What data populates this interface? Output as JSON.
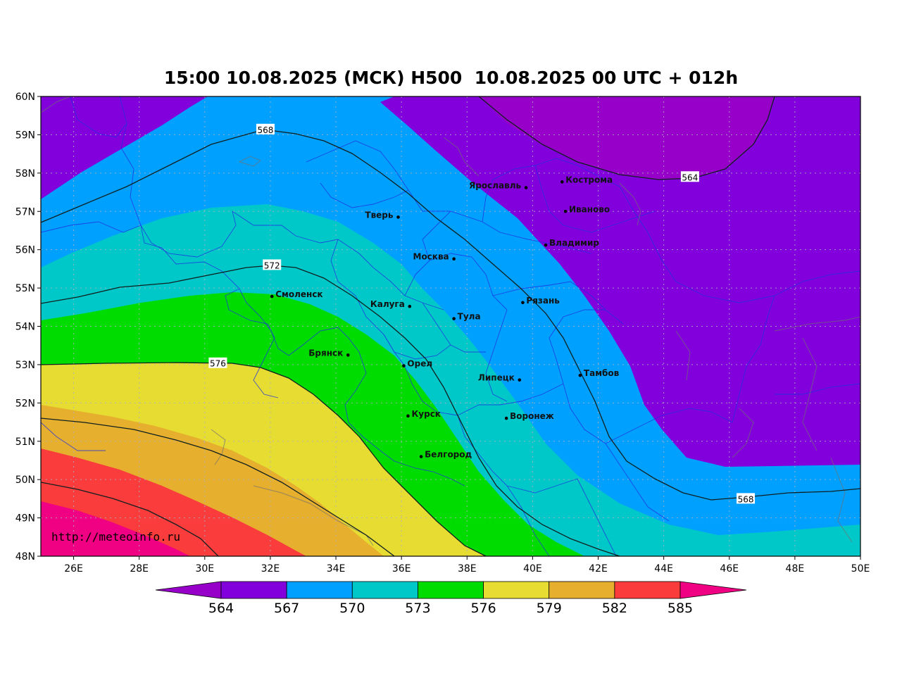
{
  "title": "15:00 10.08.2025 (МСК) H500  10.08.2025 00 UTC + 012h",
  "watermark": "http://meteoinfo.ru",
  "map": {
    "lon_range": [
      25,
      50
    ],
    "lat_range": [
      48,
      60
    ],
    "lat_ticks": [
      {
        "value": 60,
        "label": "60N"
      },
      {
        "value": 59,
        "label": "59N"
      },
      {
        "value": 58,
        "label": "58N"
      },
      {
        "value": 57,
        "label": "57N"
      },
      {
        "value": 56,
        "label": "56N"
      },
      {
        "value": 55,
        "label": "55N"
      },
      {
        "value": 54,
        "label": "54N"
      },
      {
        "value": 53,
        "label": "53N"
      },
      {
        "value": 52,
        "label": "52N"
      },
      {
        "value": 51,
        "label": "51N"
      },
      {
        "value": 50,
        "label": "50N"
      },
      {
        "value": 49,
        "label": "49N"
      },
      {
        "value": 48,
        "label": "48N"
      }
    ],
    "lon_ticks": [
      {
        "value": 26,
        "label": "26E"
      },
      {
        "value": 28,
        "label": "28E"
      },
      {
        "value": 30,
        "label": "30E"
      },
      {
        "value": 32,
        "label": "32E"
      },
      {
        "value": 34,
        "label": "34E"
      },
      {
        "value": 36,
        "label": "36E"
      },
      {
        "value": 38,
        "label": "38E"
      },
      {
        "value": 40,
        "label": "40E"
      },
      {
        "value": 42,
        "label": "42E"
      },
      {
        "value": 44,
        "label": "44E"
      },
      {
        "value": 46,
        "label": "46E"
      },
      {
        "value": 48,
        "label": "48E"
      },
      {
        "value": 50,
        "label": "50E"
      }
    ],
    "cities": [
      {
        "name": "Кострома",
        "lon": 40.9,
        "lat": 57.77,
        "side": "right"
      },
      {
        "name": "Ярославль",
        "lon": 39.8,
        "lat": 57.62,
        "side": "left"
      },
      {
        "name": "Иваново",
        "lon": 41.0,
        "lat": 57.0,
        "side": "right"
      },
      {
        "name": "Тверь",
        "lon": 35.9,
        "lat": 56.85,
        "side": "left"
      },
      {
        "name": "Владимир",
        "lon": 40.4,
        "lat": 56.12,
        "side": "right"
      },
      {
        "name": "Москва",
        "lon": 37.6,
        "lat": 55.76,
        "side": "left"
      },
      {
        "name": "Смоленск",
        "lon": 32.05,
        "lat": 54.78,
        "side": "right"
      },
      {
        "name": "Рязань",
        "lon": 39.7,
        "lat": 54.62,
        "side": "right"
      },
      {
        "name": "Калуга",
        "lon": 36.25,
        "lat": 54.52,
        "side": "left"
      },
      {
        "name": "Тула",
        "lon": 37.6,
        "lat": 54.2,
        "side": "right"
      },
      {
        "name": "Брянск",
        "lon": 34.37,
        "lat": 53.25,
        "side": "left"
      },
      {
        "name": "Орел",
        "lon": 36.07,
        "lat": 52.97,
        "side": "right"
      },
      {
        "name": "Тамбов",
        "lon": 41.45,
        "lat": 52.72,
        "side": "right"
      },
      {
        "name": "Липецк",
        "lon": 39.6,
        "lat": 52.6,
        "side": "left"
      },
      {
        "name": "Курск",
        "lon": 36.2,
        "lat": 51.66,
        "side": "right"
      },
      {
        "name": "Воронеж",
        "lon": 39.2,
        "lat": 51.6,
        "side": "right"
      },
      {
        "name": "Белгород",
        "lon": 36.6,
        "lat": 50.6,
        "side": "right"
      }
    ],
    "contour_labels": [
      {
        "text": "564",
        "lon": 44.8,
        "lat": 57.9
      },
      {
        "text": "568",
        "lon": 31.85,
        "lat": 59.14
      },
      {
        "text": "568",
        "lon": 46.5,
        "lat": 49.5
      },
      {
        "text": "572",
        "lon": 32.05,
        "lat": 55.6
      },
      {
        "text": "576",
        "lon": 30.4,
        "lat": 53.04
      }
    ]
  },
  "colorbar": {
    "labels": [
      "564",
      "567",
      "570",
      "573",
      "576",
      "579",
      "582",
      "585"
    ],
    "colors": {
      "below_564": "#9600c8",
      "564_567": "#8200dc",
      "567_570": "#00a0ff",
      "570_573": "#00c8c8",
      "573_576": "#00dc00",
      "576_579": "#e6dc32",
      "579_582": "#e6af2d",
      "582_585": "#fa3c3c",
      "above_585": "#f00082"
    }
  }
}
